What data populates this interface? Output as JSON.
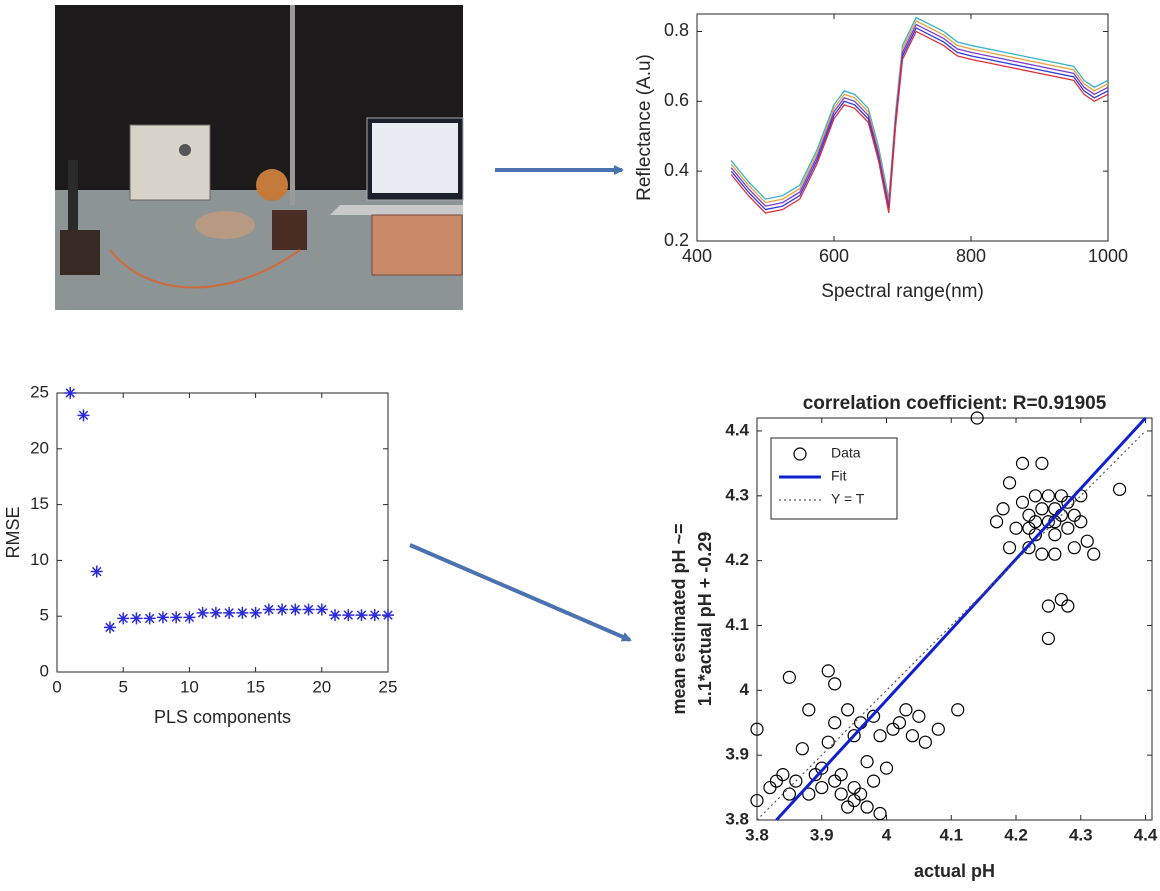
{
  "chart_data": [
    {
      "type": "line",
      "y_label": "Reflectance (A.u)",
      "x_label": "Spectral range(nm)",
      "x": [
        450,
        475,
        500,
        525,
        550,
        575,
        600,
        615,
        630,
        650,
        665,
        680,
        690,
        700,
        720,
        740,
        760,
        780,
        800,
        850,
        900,
        950,
        965,
        980,
        1000
      ],
      "series": [
        {
          "color": "#35b3c9",
          "values": [
            0.43,
            0.37,
            0.32,
            0.33,
            0.36,
            0.46,
            0.59,
            0.63,
            0.62,
            0.58,
            0.47,
            0.32,
            0.57,
            0.76,
            0.84,
            0.82,
            0.8,
            0.77,
            0.76,
            0.74,
            0.72,
            0.7,
            0.66,
            0.64,
            0.66
          ]
        },
        {
          "color": "#e8a33a",
          "values": [
            0.42,
            0.36,
            0.31,
            0.32,
            0.35,
            0.45,
            0.58,
            0.62,
            0.61,
            0.57,
            0.46,
            0.31,
            0.56,
            0.75,
            0.83,
            0.81,
            0.79,
            0.76,
            0.75,
            0.73,
            0.71,
            0.69,
            0.65,
            0.63,
            0.65
          ]
        },
        {
          "color": "#7a3fd0",
          "values": [
            0.41,
            0.35,
            0.3,
            0.31,
            0.34,
            0.44,
            0.57,
            0.61,
            0.6,
            0.56,
            0.45,
            0.3,
            0.55,
            0.74,
            0.82,
            0.8,
            0.78,
            0.75,
            0.74,
            0.72,
            0.7,
            0.68,
            0.64,
            0.62,
            0.64
          ]
        },
        {
          "color": "#2f3ae0",
          "values": [
            0.4,
            0.34,
            0.29,
            0.3,
            0.33,
            0.43,
            0.56,
            0.6,
            0.59,
            0.55,
            0.44,
            0.29,
            0.54,
            0.73,
            0.81,
            0.79,
            0.77,
            0.74,
            0.73,
            0.71,
            0.69,
            0.67,
            0.63,
            0.61,
            0.63
          ]
        },
        {
          "color": "#e0303a",
          "values": [
            0.39,
            0.33,
            0.28,
            0.29,
            0.32,
            0.42,
            0.55,
            0.59,
            0.58,
            0.54,
            0.43,
            0.28,
            0.53,
            0.72,
            0.8,
            0.78,
            0.76,
            0.73,
            0.72,
            0.7,
            0.68,
            0.66,
            0.62,
            0.6,
            0.62
          ]
        }
      ],
      "xlim": [
        400,
        1000
      ],
      "xticks": [
        400,
        600,
        800,
        1000
      ],
      "ylim": [
        0.2,
        0.85
      ],
      "yticks": [
        0.2,
        0.4,
        0.6,
        0.8
      ]
    },
    {
      "type": "scatter",
      "y_label": "RMSE",
      "x_label": "PLS components",
      "x": [
        1,
        2,
        3,
        4,
        5,
        6,
        7,
        8,
        9,
        10,
        11,
        12,
        13,
        14,
        15,
        16,
        17,
        18,
        19,
        20,
        21,
        22,
        23,
        24,
        25
      ],
      "series": [
        {
          "color": "#2b2bd9",
          "marker": "asterisk",
          "values": [
            25,
            23,
            9,
            4,
            4.8,
            4.8,
            4.8,
            4.9,
            4.9,
            4.9,
            5.3,
            5.3,
            5.3,
            5.3,
            5.3,
            5.6,
            5.6,
            5.6,
            5.6,
            5.6,
            5.1,
            5.1,
            5.1,
            5.1,
            5.1
          ]
        }
      ],
      "xlim": [
        0,
        25
      ],
      "xticks": [
        0,
        5,
        10,
        15,
        20,
        25
      ],
      "ylim": [
        0,
        25
      ],
      "yticks": [
        0,
        5,
        10,
        15,
        20,
        25
      ]
    },
    {
      "type": "scatter",
      "title": "correlation coefficient: R=0.91905",
      "y_label": [
        "mean estimated pH ~=",
        "1.1*actual pH + -0.29"
      ],
      "x_label": "actual pH",
      "legend": "northwest",
      "series": [
        {
          "name": "Data",
          "color": "#000000",
          "marker": "circle",
          "x": [
            3.8,
            3.8,
            3.82,
            3.83,
            3.84,
            3.85,
            3.85,
            3.86,
            3.87,
            3.88,
            3.88,
            3.89,
            3.9,
            3.9,
            3.91,
            3.91,
            3.92,
            3.92,
            3.92,
            3.93,
            3.93,
            3.94,
            3.94,
            3.95,
            3.95,
            3.95,
            3.96,
            3.96,
            3.97,
            3.97,
            3.98,
            3.98,
            3.99,
            3.99,
            4.0,
            4.01,
            4.02,
            4.03,
            4.04,
            4.05,
            4.06,
            4.08,
            4.11,
            4.14,
            4.17,
            4.18,
            4.19,
            4.19,
            4.2,
            4.21,
            4.21,
            4.22,
            4.22,
            4.23,
            4.23,
            4.24,
            4.24,
            4.24,
            4.25,
            4.25,
            4.25,
            4.25,
            4.26,
            4.26,
            4.26,
            4.27,
            4.27,
            4.27,
            4.28,
            4.28,
            4.28,
            4.29,
            4.29,
            4.3,
            4.3,
            4.31,
            4.32,
            4.36,
            4.23,
            4.22,
            4.26
          ],
          "values": [
            3.83,
            3.94,
            3.85,
            3.86,
            3.87,
            3.84,
            4.02,
            3.86,
            3.91,
            3.84,
            3.97,
            3.87,
            3.85,
            3.88,
            3.92,
            4.03,
            3.86,
            3.95,
            4.01,
            3.84,
            3.87,
            3.82,
            3.97,
            3.83,
            3.85,
            3.93,
            3.84,
            3.95,
            3.82,
            3.89,
            3.86,
            3.96,
            3.81,
            3.93,
            3.88,
            3.94,
            3.95,
            3.97,
            3.93,
            3.96,
            3.92,
            3.94,
            3.97,
            4.42,
            4.26,
            4.28,
            4.32,
            4.22,
            4.25,
            4.35,
            4.29,
            4.27,
            4.22,
            4.3,
            4.24,
            4.28,
            4.35,
            4.21,
            4.26,
            4.3,
            4.13,
            4.08,
            4.28,
            4.21,
            4.24,
            4.27,
            4.14,
            4.3,
            4.25,
            4.29,
            4.13,
            4.27,
            4.22,
            4.26,
            4.3,
            4.23,
            4.21,
            4.31,
            4.26,
            4.25,
            4.26
          ]
        },
        {
          "name": "Fit",
          "color": "#1020d0",
          "line": "solid",
          "x": [
            3.83,
            4.4
          ],
          "values": [
            3.8,
            4.42
          ]
        },
        {
          "name": "Y = T",
          "color": "#555555",
          "line": "dotted",
          "x": [
            3.8,
            4.4
          ],
          "values": [
            3.8,
            4.4
          ]
        }
      ],
      "xlim": [
        3.8,
        4.41
      ],
      "xticks": [
        3.8,
        3.9,
        4,
        4.1,
        4.2,
        4.3,
        4.4
      ],
      "ylim": [
        3.8,
        4.42
      ],
      "yticks": [
        3.8,
        3.9,
        4,
        4.1,
        4.2,
        4.3,
        4.4
      ]
    }
  ]
}
